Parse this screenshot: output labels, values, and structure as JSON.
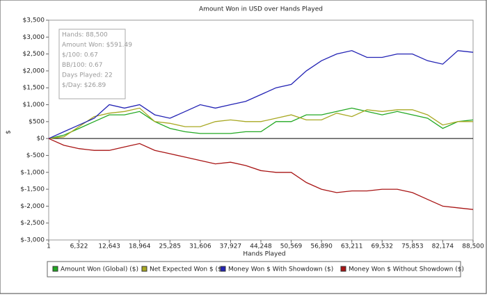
{
  "chart_data": {
    "type": "line",
    "title": "Amount Won in USD over Hands Played",
    "x_label": "Hands Played",
    "y_label": "$",
    "xlim": [
      1,
      88500
    ],
    "xticks": [
      1,
      {
        "value": 6322,
        "label": "6,322"
      },
      {
        "value": 12643,
        "label": "12,643"
      },
      {
        "value": 18964,
        "label": "18,964"
      },
      {
        "value": 25285,
        "label": "25,285"
      },
      {
        "value": 31606,
        "label": "31,606"
      },
      {
        "value": 37927,
        "label": "37,927"
      },
      {
        "value": 44248,
        "label": "44,248"
      },
      {
        "value": 50569,
        "label": "50,569"
      },
      {
        "value": 56890,
        "label": "56,890"
      },
      {
        "value": 63211,
        "label": "63,211"
      },
      {
        "value": 69532,
        "label": "69,532"
      },
      {
        "value": 75853,
        "label": "75,853"
      },
      {
        "value": 82174,
        "label": "82,174"
      },
      {
        "value": 88500,
        "label": "88,500"
      }
    ],
    "ylim": [
      -3000,
      3500
    ],
    "yticks": [
      {
        "value": -3000,
        "label": "$-3,000"
      },
      {
        "value": -2500,
        "label": "$-2,500"
      },
      {
        "value": -2000,
        "label": "$-2,000"
      },
      {
        "value": -1500,
        "label": "$-1,500"
      },
      {
        "value": -1000,
        "label": "$-1,000"
      },
      {
        "value": -500,
        "label": "$-500"
      },
      {
        "value": 0,
        "label": "$0"
      },
      {
        "value": 500,
        "label": "$500"
      },
      {
        "value": 1000,
        "label": "$1,000"
      },
      {
        "value": 1500,
        "label": "$1,500"
      },
      {
        "value": 2000,
        "label": "$2,000"
      },
      {
        "value": 2500,
        "label": "$2,500"
      },
      {
        "value": 3000,
        "label": "$3,000"
      },
      {
        "value": 3500,
        "label": "$3,500"
      }
    ],
    "legend": "bottom",
    "annotations": [
      "Hands: 88,500",
      "Amount Won: $591.49",
      "$/100: 0.67",
      "BB/100: 0.67",
      "Days Played: 22",
      "$/Day: $26.89"
    ],
    "x": [
      1,
      3161,
      6322,
      9482,
      12643,
      15803,
      18964,
      22124,
      25285,
      28445,
      31606,
      34766,
      37927,
      41087,
      44248,
      47408,
      50569,
      53729,
      56890,
      60050,
      63211,
      66371,
      69532,
      72692,
      75853,
      79013,
      82174,
      85337,
      88500
    ],
    "series": [
      {
        "name": "Amount Won (Global) ($)",
        "color": "#22a822",
        "values": [
          0,
          100,
          300,
          500,
          700,
          700,
          800,
          500,
          300,
          200,
          150,
          150,
          150,
          200,
          200,
          500,
          500,
          700,
          700,
          800,
          900,
          800,
          700,
          800,
          700,
          600,
          300,
          500,
          550
        ]
      },
      {
        "name": "Net Expected Won $ ($)",
        "color": "#a8a822",
        "values": [
          0,
          50,
          350,
          650,
          750,
          800,
          900,
          500,
          450,
          350,
          350,
          500,
          550,
          500,
          500,
          600,
          700,
          550,
          550,
          750,
          650,
          850,
          800,
          850,
          850,
          700,
          400,
          500,
          500
        ]
      },
      {
        "name": "Money Won $ With Showdown ($)",
        "color": "#2222b4",
        "values": [
          0,
          200,
          400,
          600,
          1000,
          900,
          1000,
          700,
          600,
          800,
          1000,
          900,
          1000,
          1100,
          1300,
          1500,
          1600,
          2000,
          2300,
          2500,
          2600,
          2400,
          2400,
          2500,
          2500,
          2300,
          2200,
          2600,
          2550
        ]
      },
      {
        "name": "Money Won $ Without Showdown ($)",
        "color": "#a81414",
        "values": [
          0,
          -200,
          -300,
          -350,
          -350,
          -250,
          -150,
          -350,
          -450,
          -550,
          -650,
          -750,
          -700,
          -800,
          -950,
          -1000,
          -1000,
          -1300,
          -1500,
          -1600,
          -1550,
          -1550,
          -1500,
          -1500,
          -1600,
          -1800,
          -2000,
          -2050,
          -2100
        ]
      }
    ]
  }
}
